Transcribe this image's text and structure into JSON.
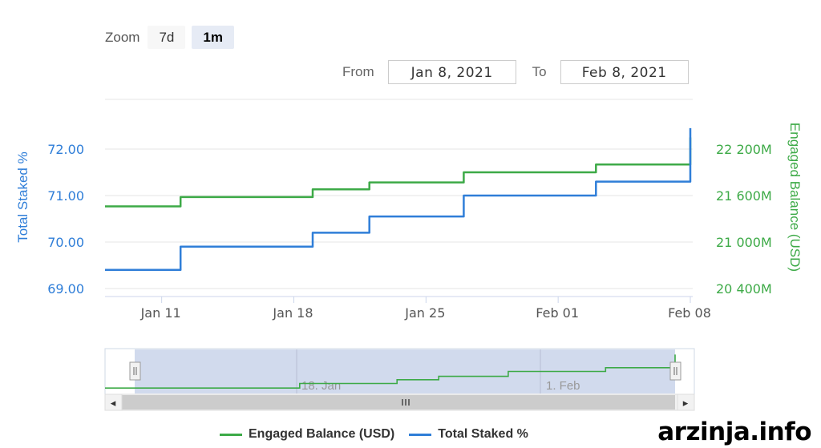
{
  "zoom": {
    "label": "Zoom",
    "buttons": [
      {
        "label": "7d",
        "active": false
      },
      {
        "label": "1m",
        "active": true
      }
    ]
  },
  "range": {
    "from_label": "From",
    "from_value": "Jan 8, 2021",
    "to_label": "To",
    "to_value": "Feb 8, 2021"
  },
  "chart_data": {
    "type": "line",
    "title": "",
    "x_range": [
      "2021-01-08",
      "2021-02-08"
    ],
    "x_ticks": [
      {
        "label": "Jan 11",
        "date": "2021-01-11"
      },
      {
        "label": "Jan 18",
        "date": "2021-01-18"
      },
      {
        "label": "Jan 25",
        "date": "2021-01-25"
      },
      {
        "label": "Feb 01",
        "date": "2021-02-01"
      },
      {
        "label": "Feb 08",
        "date": "2021-02-08"
      }
    ],
    "y_left": {
      "label": "Total Staked %",
      "ticks": [
        "69.00",
        "70.00",
        "71.00",
        "72.00"
      ],
      "range": [
        69.0,
        72.0
      ],
      "color": "#2f7ed8"
    },
    "y_right": {
      "label": "Engaged Balance (USD)",
      "ticks": [
        "20 400M",
        "21 000M",
        "21 600M",
        "22 200M"
      ],
      "range": [
        20400,
        22200
      ],
      "unit": "M",
      "color": "#3daa47"
    },
    "series": [
      {
        "name": "Engaged Balance (USD)",
        "axis": "right",
        "color": "#3daa47",
        "points": [
          [
            "2021-01-08",
            21460
          ],
          [
            "2021-01-12",
            21460
          ],
          [
            "2021-01-12",
            21580
          ],
          [
            "2021-01-19",
            21580
          ],
          [
            "2021-01-19",
            21680
          ],
          [
            "2021-01-22",
            21680
          ],
          [
            "2021-01-22",
            21770
          ],
          [
            "2021-01-27",
            21770
          ],
          [
            "2021-01-27",
            21900
          ],
          [
            "2021-02-03",
            21900
          ],
          [
            "2021-02-03",
            22000
          ],
          [
            "2021-02-08",
            22000
          ],
          [
            "2021-02-08",
            22350
          ]
        ]
      },
      {
        "name": "Total Staked %",
        "axis": "left",
        "color": "#2f7ed8",
        "points": [
          [
            "2021-01-08",
            69.4
          ],
          [
            "2021-01-12",
            69.4
          ],
          [
            "2021-01-12",
            69.9
          ],
          [
            "2021-01-19",
            69.9
          ],
          [
            "2021-01-19",
            70.2
          ],
          [
            "2021-01-22",
            70.2
          ],
          [
            "2021-01-22",
            70.55
          ],
          [
            "2021-01-27",
            70.55
          ],
          [
            "2021-01-27",
            71.0
          ],
          [
            "2021-02-03",
            71.0
          ],
          [
            "2021-02-03",
            71.3
          ],
          [
            "2021-02-08",
            71.3
          ],
          [
            "2021-02-08",
            72.45
          ]
        ]
      }
    ],
    "grid": true,
    "legend": "bottom-center"
  },
  "navigator": {
    "labels": [
      "18. Jan",
      "1. Feb"
    ],
    "scroll_icon": "grip-icon",
    "left_arrow": "◂",
    "right_arrow": "▸"
  },
  "legend": {
    "items": [
      {
        "name": "Engaged Balance (USD)",
        "color": "#3daa47"
      },
      {
        "name": "Total Staked %",
        "color": "#2f7ed8"
      }
    ]
  },
  "watermark": "arzinja.info"
}
